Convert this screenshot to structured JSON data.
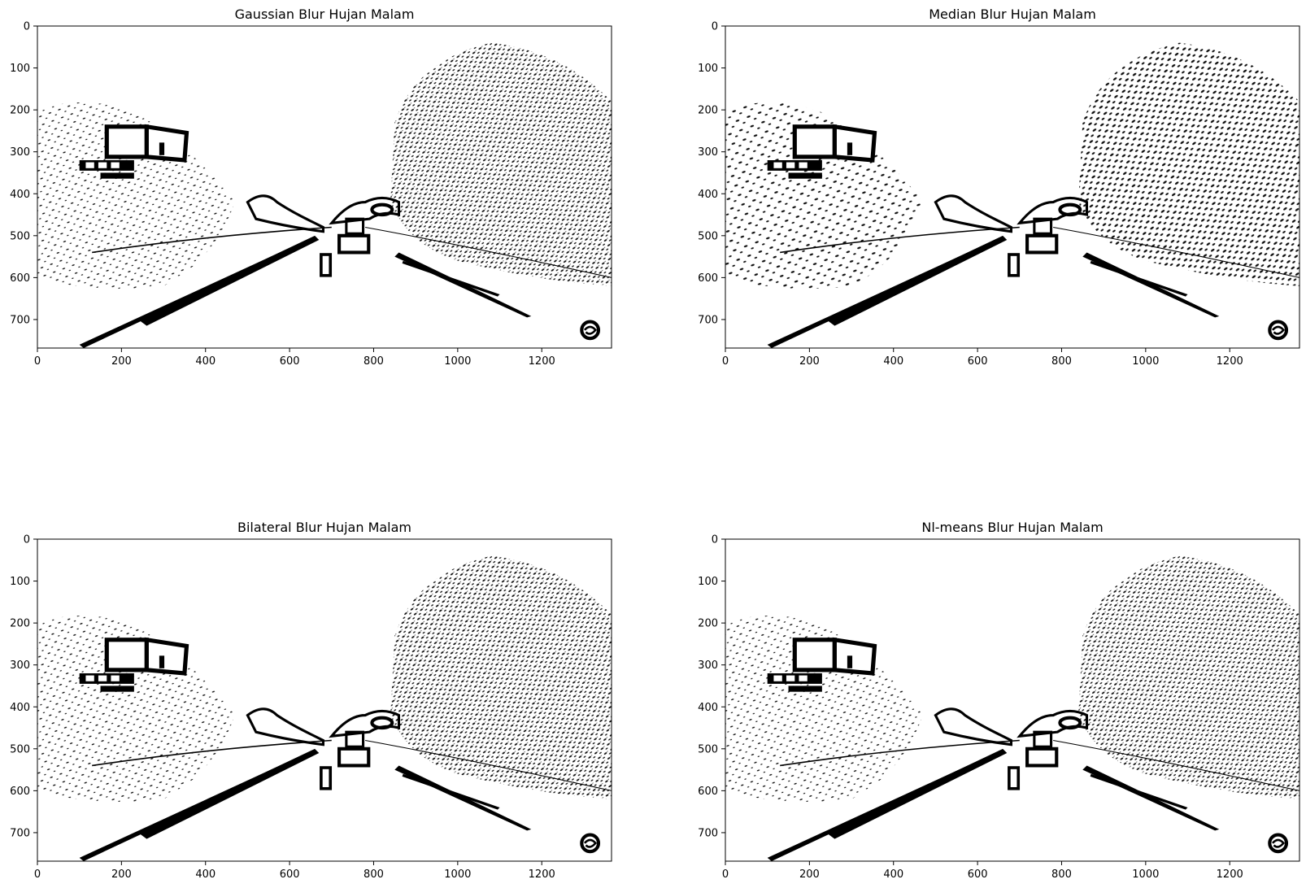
{
  "chart_data": [
    {
      "type": "image",
      "title": "Gaussian Blur Hujan Malam",
      "xlim": [
        0,
        1366
      ],
      "ylim": [
        768,
        0
      ],
      "xticks": [
        0,
        200,
        400,
        600,
        800,
        1000,
        1200
      ],
      "yticks": [
        0,
        100,
        200,
        300,
        400,
        500,
        600,
        700
      ],
      "xlabel": "",
      "ylabel": ""
    },
    {
      "type": "image",
      "title": "Median Blur Hujan Malam",
      "xlim": [
        0,
        1366
      ],
      "ylim": [
        768,
        0
      ],
      "xticks": [
        0,
        200,
        400,
        600,
        800,
        1000,
        1200
      ],
      "yticks": [
        0,
        100,
        200,
        300,
        400,
        500,
        600,
        700
      ],
      "xlabel": "",
      "ylabel": ""
    },
    {
      "type": "image",
      "title": "Bilateral Blur Hujan Malam",
      "xlim": [
        0,
        1366
      ],
      "ylim": [
        768,
        0
      ],
      "xticks": [
        0,
        200,
        400,
        600,
        800,
        1000,
        1200
      ],
      "yticks": [
        0,
        100,
        200,
        300,
        400,
        500,
        600,
        700
      ],
      "xlabel": "",
      "ylabel": ""
    },
    {
      "type": "image",
      "title": "Nl-means Blur Hujan Malam",
      "xlim": [
        0,
        1366
      ],
      "ylim": [
        768,
        0
      ],
      "xticks": [
        0,
        200,
        400,
        600,
        800,
        1000,
        1200
      ],
      "yticks": [
        0,
        100,
        200,
        300,
        400,
        500,
        600,
        700
      ],
      "xlabel": "",
      "ylabel": ""
    }
  ],
  "colors": {
    "foreground": "#000000",
    "background": "#ffffff"
  }
}
